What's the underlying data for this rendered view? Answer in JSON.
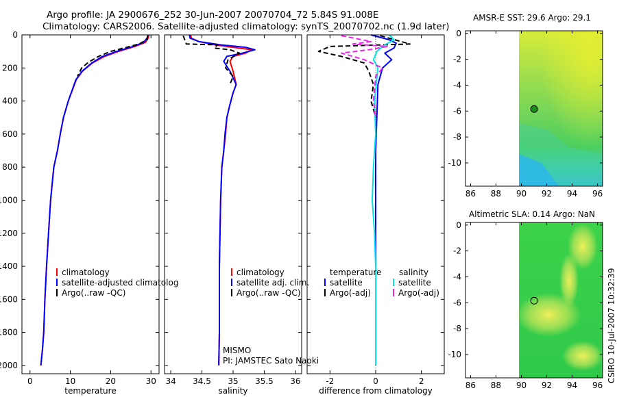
{
  "header": {
    "line1": "Argo profile: JA 2900676_252 30-Jun-2007 20070704_72 5.84S 91.008E",
    "line2": "Climatology: CARS2006. Satellite-adjusted climatology: synTS_20070702.nc (1.9d later)"
  },
  "side_label": "CSIRO 10-Jul-2007 10:32:39",
  "colors": {
    "climatology": "#ff0000",
    "satellite": "#0000ff",
    "argo": "#000000",
    "diff_temp_sat": "#0000ff",
    "diff_sal_sat": "#00e5e5",
    "diff_sal_argo": "#ee22ee",
    "float_marker": "#1a8c1a"
  },
  "chart_data": [
    {
      "type": "line",
      "name": "temperature-profile",
      "xlabel": "temperature",
      "ylabel": "",
      "xlim": [
        -2,
        32
      ],
      "ylim": [
        2050,
        0
      ],
      "xticks": [
        0,
        10,
        20,
        30
      ],
      "yticks": [
        0,
        200,
        400,
        600,
        800,
        1000,
        1200,
        1400,
        1600,
        1800,
        2000
      ],
      "legend": [
        "climatology",
        "satellite-adjusted climatolog",
        "Argo(..raw -QC)"
      ],
      "series": [
        {
          "name": "climatology",
          "color": "#ff0000",
          "dash": false,
          "x": [
            29.5,
            29.3,
            28.6,
            26.0,
            22.0,
            18.5,
            15.5,
            13.0,
            11.5,
            9.5,
            8.3,
            7.5,
            6.8,
            5.9,
            5.1,
            4.6,
            4.1,
            3.7,
            3.4,
            3.1,
            2.9,
            2.7
          ],
          "y": [
            0,
            20,
            45,
            70,
            100,
            130,
            170,
            220,
            270,
            400,
            500,
            600,
            700,
            800,
            1000,
            1200,
            1400,
            1600,
            1800,
            1900,
            1950,
            2000
          ]
        },
        {
          "name": "satellite-adjusted climatolog",
          "color": "#0000ff",
          "dash": false,
          "x": [
            29.3,
            29.0,
            28.2,
            25.5,
            21.5,
            18.0,
            15.3,
            12.9,
            11.4,
            9.5,
            8.3,
            7.5,
            6.8,
            5.9,
            5.1,
            4.6,
            4.1,
            3.7,
            3.4,
            3.1,
            2.9,
            2.7
          ],
          "y": [
            0,
            20,
            45,
            70,
            100,
            130,
            170,
            220,
            270,
            400,
            500,
            600,
            700,
            800,
            1000,
            1200,
            1400,
            1600,
            1800,
            1900,
            1950,
            2000
          ]
        },
        {
          "name": "Argo(..raw -QC)",
          "color": "#000000",
          "dash": true,
          "x": [
            29.2,
            29.0,
            27.0,
            24.0,
            20.0,
            17.0,
            14.5,
            12.8,
            11.8
          ],
          "y": [
            5,
            30,
            55,
            75,
            100,
            130,
            165,
            200,
            250
          ]
        }
      ]
    },
    {
      "type": "line",
      "name": "salinity-profile",
      "xlabel": "salinity",
      "xlim": [
        33.9,
        36.1
      ],
      "ylim": [
        2050,
        0
      ],
      "xticks": [
        34,
        34.5,
        35,
        35.5,
        36
      ],
      "yticks": [
        0,
        200,
        400,
        600,
        800,
        1000,
        1200,
        1400,
        1600,
        1800,
        2000
      ],
      "legend": [
        "climatology",
        "satellite adj. clim.",
        "Argo(..raw -QC)"
      ],
      "annotations": [
        "MISMO",
        "PI: JAMSTEC Sato Naoki"
      ],
      "series": [
        {
          "name": "climatology",
          "color": "#ff0000",
          "dash": false,
          "x": [
            34.32,
            34.33,
            34.45,
            34.7,
            35.0,
            35.3,
            35.2,
            35.0,
            34.95,
            35.0,
            35.05,
            35.0,
            34.95,
            34.9,
            34.88,
            34.85,
            34.82,
            34.8,
            34.79,
            34.78,
            34.78,
            34.77
          ],
          "y": [
            0,
            20,
            40,
            60,
            75,
            90,
            110,
            130,
            160,
            220,
            300,
            350,
            420,
            500,
            600,
            700,
            800,
            1000,
            1200,
            1400,
            1800,
            2000
          ]
        },
        {
          "name": "satellite adj. clim.",
          "color": "#0000ff",
          "dash": false,
          "x": [
            34.3,
            34.31,
            34.45,
            34.8,
            35.2,
            35.35,
            35.15,
            34.9,
            34.85,
            34.95,
            35.05,
            35.0,
            34.95,
            34.9,
            34.87,
            34.85,
            34.82,
            34.8,
            34.79,
            34.78,
            34.78,
            34.77
          ],
          "y": [
            0,
            20,
            40,
            60,
            75,
            90,
            110,
            130,
            160,
            220,
            300,
            350,
            420,
            500,
            600,
            700,
            800,
            1000,
            1200,
            1400,
            1800,
            2000
          ]
        },
        {
          "name": "Argo(..raw -QC)",
          "color": "#000000",
          "dash": true,
          "x": [
            34.2,
            34.25,
            34.75,
            34.7,
            34.95,
            35.1,
            34.92,
            34.88,
            35.0,
            34.95
          ],
          "y": [
            5,
            55,
            60,
            80,
            90,
            110,
            150,
            200,
            250,
            300
          ]
        }
      ]
    },
    {
      "type": "line",
      "name": "difference-profile",
      "xlabel": "difference from climatology",
      "xlim": [
        -3,
        3
      ],
      "ylim": [
        2050,
        0
      ],
      "xticks": [
        -2,
        0,
        2
      ],
      "yticks": [
        0,
        200,
        400,
        600,
        800,
        1000,
        1200,
        1400,
        1600,
        1800,
        2000
      ],
      "legend_titles": [
        "temperature",
        "salinity"
      ],
      "legend": [
        "satellite",
        "Argo(-adj)",
        "satellite",
        "Argo(-adj)"
      ],
      "series": [
        {
          "name": "temperature satellite",
          "color": "#0000ff",
          "dash": false,
          "x": [
            -0.2,
            0.6,
            0.9,
            0.8,
            0.4,
            0.7,
            0.3,
            0.1,
            0.05,
            0,
            0,
            0,
            0,
            0
          ],
          "y": [
            0,
            30,
            50,
            80,
            110,
            150,
            200,
            300,
            500,
            700,
            1000,
            1400,
            1800,
            2000
          ]
        },
        {
          "name": "temperature Argo(-adj)",
          "color": "#000000",
          "dash": true,
          "x": [
            0.2,
            1.5,
            -2.0,
            -2.5,
            -1.5,
            -0.5,
            -0.3,
            -0.1,
            -0.2,
            0
          ],
          "y": [
            5,
            55,
            70,
            100,
            130,
            170,
            220,
            300,
            400,
            500
          ]
        },
        {
          "name": "salinity satellite",
          "color": "#00e5e5",
          "dash": false,
          "x": [
            0.6,
            0.8,
            0.4,
            0.05,
            -0.1,
            0.1,
            -0.05,
            0,
            -0.1,
            -0.15,
            -0.05,
            0,
            0,
            0,
            0
          ],
          "y": [
            0,
            30,
            60,
            100,
            150,
            200,
            400,
            600,
            800,
            1000,
            1200,
            1400,
            1600,
            1800,
            2000
          ]
        },
        {
          "name": "salinity Argo(-adj)",
          "color": "#ee22ee",
          "dash": true,
          "x": [
            -1.5,
            -0.2,
            -1.0,
            0.5,
            -0.3,
            -1.5,
            -0.5,
            0.3,
            0,
            -0.1,
            0
          ],
          "y": [
            5,
            40,
            55,
            70,
            90,
            110,
            150,
            200,
            250,
            400,
            500
          ]
        }
      ]
    },
    {
      "type": "heatmap",
      "name": "sst-map",
      "title": "AMSR-E SST: 29.6 Argo: 29.1",
      "xlim": [
        85.6,
        96.4
      ],
      "ylim": [
        -11.8,
        0.2
      ],
      "xticks": [
        86,
        88,
        90,
        92,
        94,
        96
      ],
      "yticks": [
        0,
        -2,
        -4,
        -6,
        -8,
        -10
      ],
      "data_region_x": [
        90,
        96.4
      ],
      "float_position": {
        "lon": 91.008,
        "lat": -5.84
      }
    },
    {
      "type": "heatmap",
      "name": "sla-map",
      "title": "Altimetric SLA: 0.14 Argo: NaN",
      "xlim": [
        85.6,
        96.4
      ],
      "ylim": [
        -11.8,
        0.2
      ],
      "xticks": [
        86,
        88,
        90,
        92,
        94,
        96
      ],
      "yticks": [
        0,
        -2,
        -4,
        -6,
        -8,
        -10
      ],
      "data_region_x": [
        90,
        96.4
      ],
      "float_position": {
        "lon": 91.008,
        "lat": -5.84
      }
    }
  ]
}
